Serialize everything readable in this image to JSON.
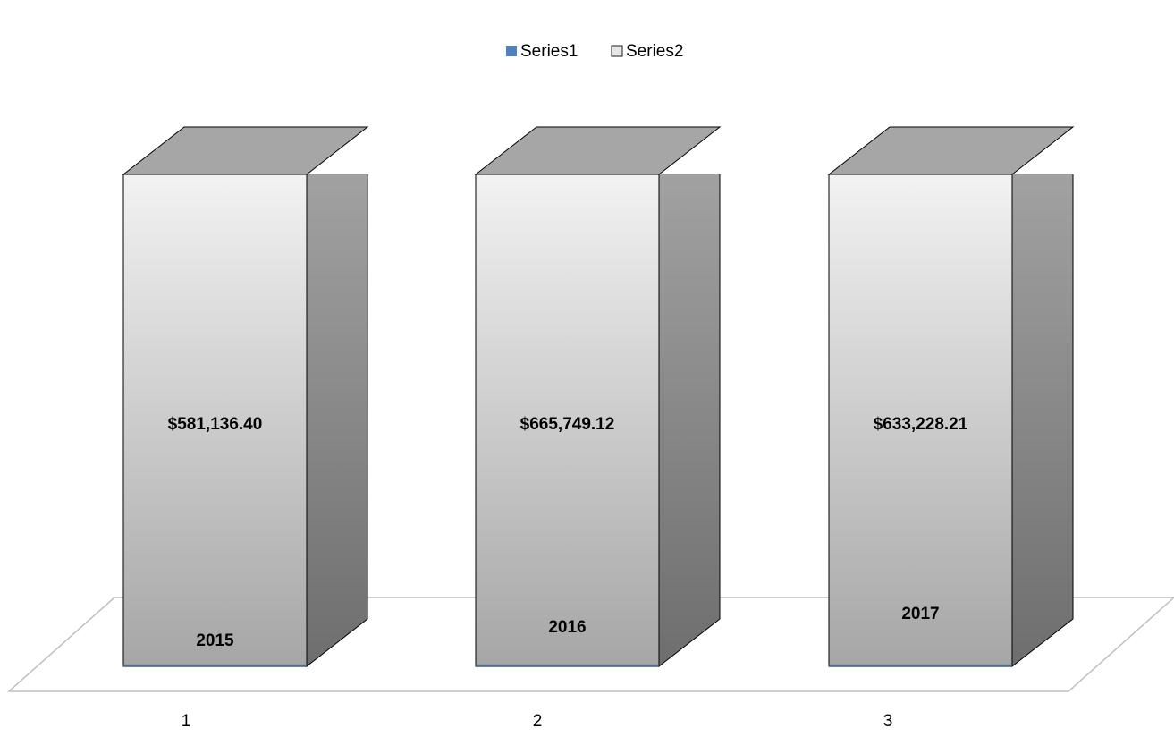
{
  "chart_data": {
    "type": "bar3d",
    "categories": [
      "1",
      "2",
      "3"
    ],
    "series": [
      {
        "name": "Series1",
        "color": "#4f81bd",
        "values": [
          2015,
          2016,
          2017
        ]
      },
      {
        "name": "Series2",
        "color": "#d9d9d9",
        "values": [
          581136.4,
          665749.12,
          633228.21
        ],
        "value_labels": [
          "$581,136.40",
          "$665,749.12",
          "$633,228.21"
        ]
      }
    ],
    "ylim": [
      0,
      500000
    ]
  }
}
